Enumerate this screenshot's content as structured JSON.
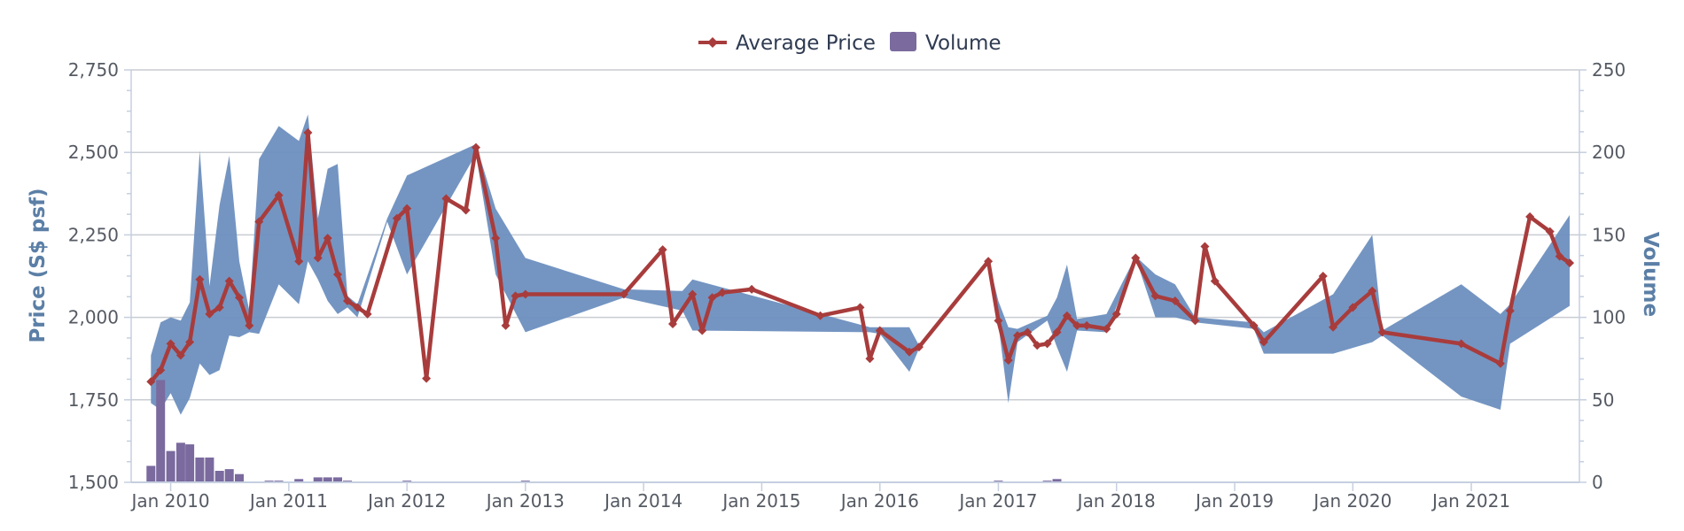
{
  "chart_data": {
    "type": "line",
    "legend": {
      "position": "top-center",
      "items": [
        {
          "label": "Average Price",
          "color": "#a83c3c",
          "marker": "diamond-line"
        },
        {
          "label": "Volume",
          "color": "#7a6a9e",
          "marker": "box"
        }
      ]
    },
    "y_left": {
      "title": "Price (S$ psf)",
      "min": 1500,
      "max": 2750,
      "ticks": [
        1500,
        1750,
        2000,
        2250,
        2500,
        2750
      ],
      "tick_labels": [
        "1,500",
        "1,750",
        "2,000",
        "2,250",
        "2,500",
        "2,750"
      ]
    },
    "y_right": {
      "title": "Volume",
      "min": 0,
      "max": 250,
      "ticks": [
        0,
        50,
        100,
        150,
        200,
        250
      ],
      "tick_labels": [
        "0",
        "50",
        "100",
        "150",
        "200",
        "250"
      ]
    },
    "x_axis": {
      "min": "2009-09",
      "max": "2021-12",
      "ticks": [
        "2010-01",
        "2011-01",
        "2012-01",
        "2013-01",
        "2014-01",
        "2015-01",
        "2016-01",
        "2017-01",
        "2018-01",
        "2019-01",
        "2020-01",
        "2021-01"
      ],
      "tick_labels": [
        "Jan 2010",
        "Jan 2011",
        "Jan 2012",
        "Jan 2013",
        "Jan 2014",
        "Jan 2015",
        "Jan 2016",
        "Jan 2017",
        "Jan 2018",
        "Jan 2019",
        "Jan 2020",
        "Jan 2021"
      ]
    },
    "grid": true,
    "colors": {
      "price": "#a83c3c",
      "range": "#6d8fbf",
      "volume": "#7a6a9e",
      "grid": "#c9ccd1",
      "axis": "#c5cfe0"
    },
    "series": [
      {
        "name": "Average Price",
        "kind": "line",
        "axis": "left",
        "points": [
          [
            "2009-11-01",
            1805
          ],
          [
            "2009-12-01",
            1840
          ],
          [
            "2010-01-01",
            1920
          ],
          [
            "2010-02-01",
            1885
          ],
          [
            "2010-03-01",
            1925
          ],
          [
            "2010-04-01",
            2115
          ],
          [
            "2010-05-01",
            2010
          ],
          [
            "2010-06-01",
            2030
          ],
          [
            "2010-07-01",
            2110
          ],
          [
            "2010-08-01",
            2060
          ],
          [
            "2010-09-01",
            1975
          ],
          [
            "2010-10-01",
            2290
          ],
          [
            "2010-12-01",
            2370
          ],
          [
            "2011-02-01",
            2170
          ],
          [
            "2011-03-01",
            2560
          ],
          [
            "2011-04-01",
            2180
          ],
          [
            "2011-05-01",
            2240
          ],
          [
            "2011-06-01",
            2130
          ],
          [
            "2011-07-01",
            2050
          ],
          [
            "2011-08-01",
            2030
          ],
          [
            "2011-09-01",
            2010
          ],
          [
            "2011-12-01",
            2300
          ],
          [
            "2012-01-01",
            2330
          ],
          [
            "2012-03-01",
            1815
          ],
          [
            "2012-05-01",
            2360
          ],
          [
            "2012-07-01",
            2325
          ],
          [
            "2012-08-01",
            2515
          ],
          [
            "2012-10-01",
            2240
          ],
          [
            "2012-11-01",
            1975
          ],
          [
            "2012-12-01",
            2065
          ],
          [
            "2013-01-01",
            2070
          ],
          [
            "2013-11-01",
            2070
          ],
          [
            "2014-03-01",
            2205
          ],
          [
            "2014-04-01",
            1980
          ],
          [
            "2014-06-01",
            2070
          ],
          [
            "2014-07-01",
            1960
          ],
          [
            "2014-08-01",
            2060
          ],
          [
            "2014-09-01",
            2075
          ],
          [
            "2014-12-01",
            2085
          ],
          [
            "2015-07-01",
            2005
          ],
          [
            "2015-11-01",
            2030
          ],
          [
            "2015-12-01",
            1875
          ],
          [
            "2016-01-01",
            1960
          ],
          [
            "2016-04-01",
            1895
          ],
          [
            "2016-05-01",
            1910
          ],
          [
            "2016-12-01",
            2170
          ],
          [
            "2017-01-01",
            1990
          ],
          [
            "2017-02-01",
            1870
          ],
          [
            "2017-03-01",
            1945
          ],
          [
            "2017-04-01",
            1955
          ],
          [
            "2017-05-01",
            1915
          ],
          [
            "2017-06-01",
            1920
          ],
          [
            "2017-07-01",
            1955
          ],
          [
            "2017-08-01",
            2005
          ],
          [
            "2017-09-01",
            1975
          ],
          [
            "2017-10-01",
            1975
          ],
          [
            "2017-12-01",
            1965
          ],
          [
            "2018-01-01",
            2010
          ],
          [
            "2018-03-01",
            2180
          ],
          [
            "2018-05-01",
            2065
          ],
          [
            "2018-07-01",
            2050
          ],
          [
            "2018-09-01",
            1990
          ],
          [
            "2018-10-01",
            2215
          ],
          [
            "2018-11-01",
            2110
          ],
          [
            "2019-03-01",
            1975
          ],
          [
            "2019-04-01",
            1925
          ],
          [
            "2019-10-01",
            2125
          ],
          [
            "2019-11-01",
            1970
          ],
          [
            "2020-01-01",
            2030
          ],
          [
            "2020-03-01",
            2080
          ],
          [
            "2020-04-01",
            1955
          ],
          [
            "2020-12-01",
            1920
          ],
          [
            "2021-04-01",
            1860
          ],
          [
            "2021-05-01",
            2020
          ],
          [
            "2021-07-01",
            2305
          ],
          [
            "2021-09-01",
            2260
          ],
          [
            "2021-10-01",
            2185
          ],
          [
            "2021-11-01",
            2165
          ]
        ]
      },
      {
        "name": "Range",
        "kind": "arearange",
        "axis": "left",
        "points": [
          [
            "2009-11-01",
            1740,
            1885
          ],
          [
            "2009-12-01",
            1720,
            1985
          ],
          [
            "2010-01-01",
            1770,
            2000
          ],
          [
            "2010-02-01",
            1705,
            1990
          ],
          [
            "2010-03-01",
            1755,
            2045
          ],
          [
            "2010-04-01",
            1860,
            2505
          ],
          [
            "2010-05-01",
            1825,
            2095
          ],
          [
            "2010-06-01",
            1840,
            2340
          ],
          [
            "2010-07-01",
            1945,
            2490
          ],
          [
            "2010-08-01",
            1940,
            2170
          ],
          [
            "2010-09-01",
            1955,
            2020
          ],
          [
            "2010-10-01",
            1950,
            2480
          ],
          [
            "2010-12-01",
            2100,
            2580
          ],
          [
            "2011-02-01",
            2040,
            2535
          ],
          [
            "2011-03-01",
            2170,
            2615
          ],
          [
            "2011-04-01",
            2115,
            2300
          ],
          [
            "2011-05-01",
            2050,
            2450
          ],
          [
            "2011-06-01",
            2010,
            2465
          ],
          [
            "2011-07-01",
            2030,
            2065
          ],
          [
            "2011-08-01",
            2000,
            2040
          ],
          [
            "2011-11-01",
            2290,
            2300
          ],
          [
            "2012-01-01",
            2130,
            2430
          ],
          [
            "2012-08-01",
            2495,
            2525
          ],
          [
            "2012-10-01",
            2130,
            2330
          ],
          [
            "2013-01-01",
            1955,
            2180
          ],
          [
            "2013-11-01",
            2060,
            2085
          ],
          [
            "2014-05-01",
            2020,
            2080
          ],
          [
            "2014-06-01",
            1960,
            2115
          ],
          [
            "2015-12-01",
            1955,
            1970
          ],
          [
            "2016-01-01",
            1950,
            1970
          ],
          [
            "2016-04-01",
            1835,
            1970
          ],
          [
            "2016-05-01",
            1905,
            1915
          ],
          [
            "2016-12-01",
            2170,
            2175
          ],
          [
            "2017-01-01",
            1980,
            2050
          ],
          [
            "2017-02-01",
            1740,
            1970
          ],
          [
            "2017-03-01",
            1925,
            1965
          ],
          [
            "2017-06-01",
            1990,
            2005
          ],
          [
            "2017-07-01",
            1910,
            2060
          ],
          [
            "2017-08-01",
            1835,
            2160
          ],
          [
            "2017-09-01",
            1960,
            1995
          ],
          [
            "2017-12-01",
            1955,
            2010
          ],
          [
            "2018-03-01",
            2180,
            2185
          ],
          [
            "2018-05-01",
            2000,
            2130
          ],
          [
            "2018-07-01",
            2000,
            2100
          ],
          [
            "2018-09-01",
            1985,
            2000
          ],
          [
            "2019-03-01",
            1965,
            1985
          ],
          [
            "2019-04-01",
            1890,
            1955
          ],
          [
            "2019-11-01",
            1890,
            2070
          ],
          [
            "2020-03-01",
            1925,
            2250
          ],
          [
            "2020-04-01",
            1945,
            1960
          ],
          [
            "2020-12-01",
            1760,
            2100
          ],
          [
            "2021-04-01",
            1720,
            2010
          ],
          [
            "2021-05-01",
            1920,
            2040
          ],
          [
            "2021-11-01",
            2035,
            2310
          ]
        ]
      },
      {
        "name": "Volume",
        "kind": "column",
        "axis": "right",
        "points": [
          [
            "2009-11-01",
            10
          ],
          [
            "2009-12-01",
            62
          ],
          [
            "2010-01-01",
            19
          ],
          [
            "2010-02-01",
            24
          ],
          [
            "2010-03-01",
            23
          ],
          [
            "2010-04-01",
            15
          ],
          [
            "2010-05-01",
            15
          ],
          [
            "2010-06-01",
            7
          ],
          [
            "2010-07-01",
            8
          ],
          [
            "2010-08-01",
            5
          ],
          [
            "2010-11-01",
            1
          ],
          [
            "2010-12-01",
            1
          ],
          [
            "2011-02-01",
            2
          ],
          [
            "2011-04-01",
            3
          ],
          [
            "2011-05-01",
            3
          ],
          [
            "2011-06-01",
            3
          ],
          [
            "2011-07-01",
            1
          ],
          [
            "2012-01-01",
            1
          ],
          [
            "2013-01-01",
            1
          ],
          [
            "2017-01-01",
            1
          ],
          [
            "2017-06-01",
            1
          ],
          [
            "2017-07-01",
            2
          ]
        ]
      }
    ]
  }
}
